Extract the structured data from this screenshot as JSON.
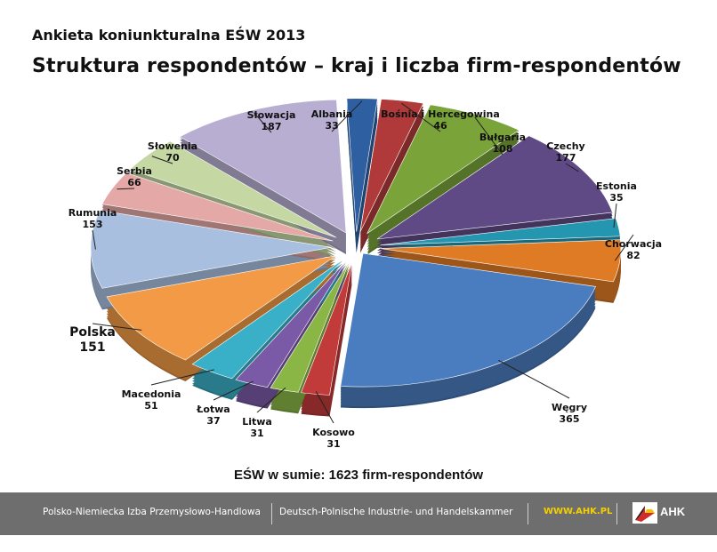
{
  "header": {
    "pre_title": "Ankieta koniunkturalna EŚW 2013",
    "title": "Struktura respondentów – kraj i liczba firm-respondentów"
  },
  "chart_data": {
    "type": "pie",
    "title": "Struktura respondentów – kraj i liczba firm-respondentów",
    "slices": [
      {
        "label": "Albania",
        "value": 33,
        "color": "#2e5fa0"
      },
      {
        "label": "Bośnia i Hercegowina",
        "value": 46,
        "color": "#b03a3a"
      },
      {
        "label": "Bułgaria",
        "value": 108,
        "color": "#7aa33a"
      },
      {
        "label": "Czechy",
        "value": 177,
        "color": "#5f4a86"
      },
      {
        "label": "Estonia",
        "value": 35,
        "color": "#2596b0"
      },
      {
        "label": "Chorwacja",
        "value": 82,
        "color": "#e07b25"
      },
      {
        "label": "Węgry",
        "value": 365,
        "color": "#4a7cc0"
      },
      {
        "label": "Kosowo",
        "value": 31,
        "color": "#c23b3b"
      },
      {
        "label": "Litwa",
        "value": 31,
        "color": "#8ab646"
      },
      {
        "label": "Łotwa",
        "value": 37,
        "color": "#7a5aa6"
      },
      {
        "label": "Macedonia",
        "value": 51,
        "color": "#3ab0c8"
      },
      {
        "label": "Polska",
        "value": 151,
        "color": "#f29a45"
      },
      {
        "label": "Rumunia",
        "value": 153,
        "color": "#a9bfe0"
      },
      {
        "label": "Serbia",
        "value": 66,
        "color": "#e4a9a6"
      },
      {
        "label": "Słowenia",
        "value": 70,
        "color": "#c5d8a4"
      },
      {
        "label": "Słowacja",
        "value": 187,
        "color": "#b7aed2"
      }
    ],
    "total": 1623
  },
  "summary": "EŚW w sumie: 1623 firm-respondentów",
  "footer": {
    "pl_name": "Polsko-Niemiecka Izba Przemysłowo-Handlowa",
    "de_name": "Deutsch-Polnische Industrie- und Handelskammer",
    "url": "WWW.AHK.PL",
    "logo_text": "AHK"
  }
}
